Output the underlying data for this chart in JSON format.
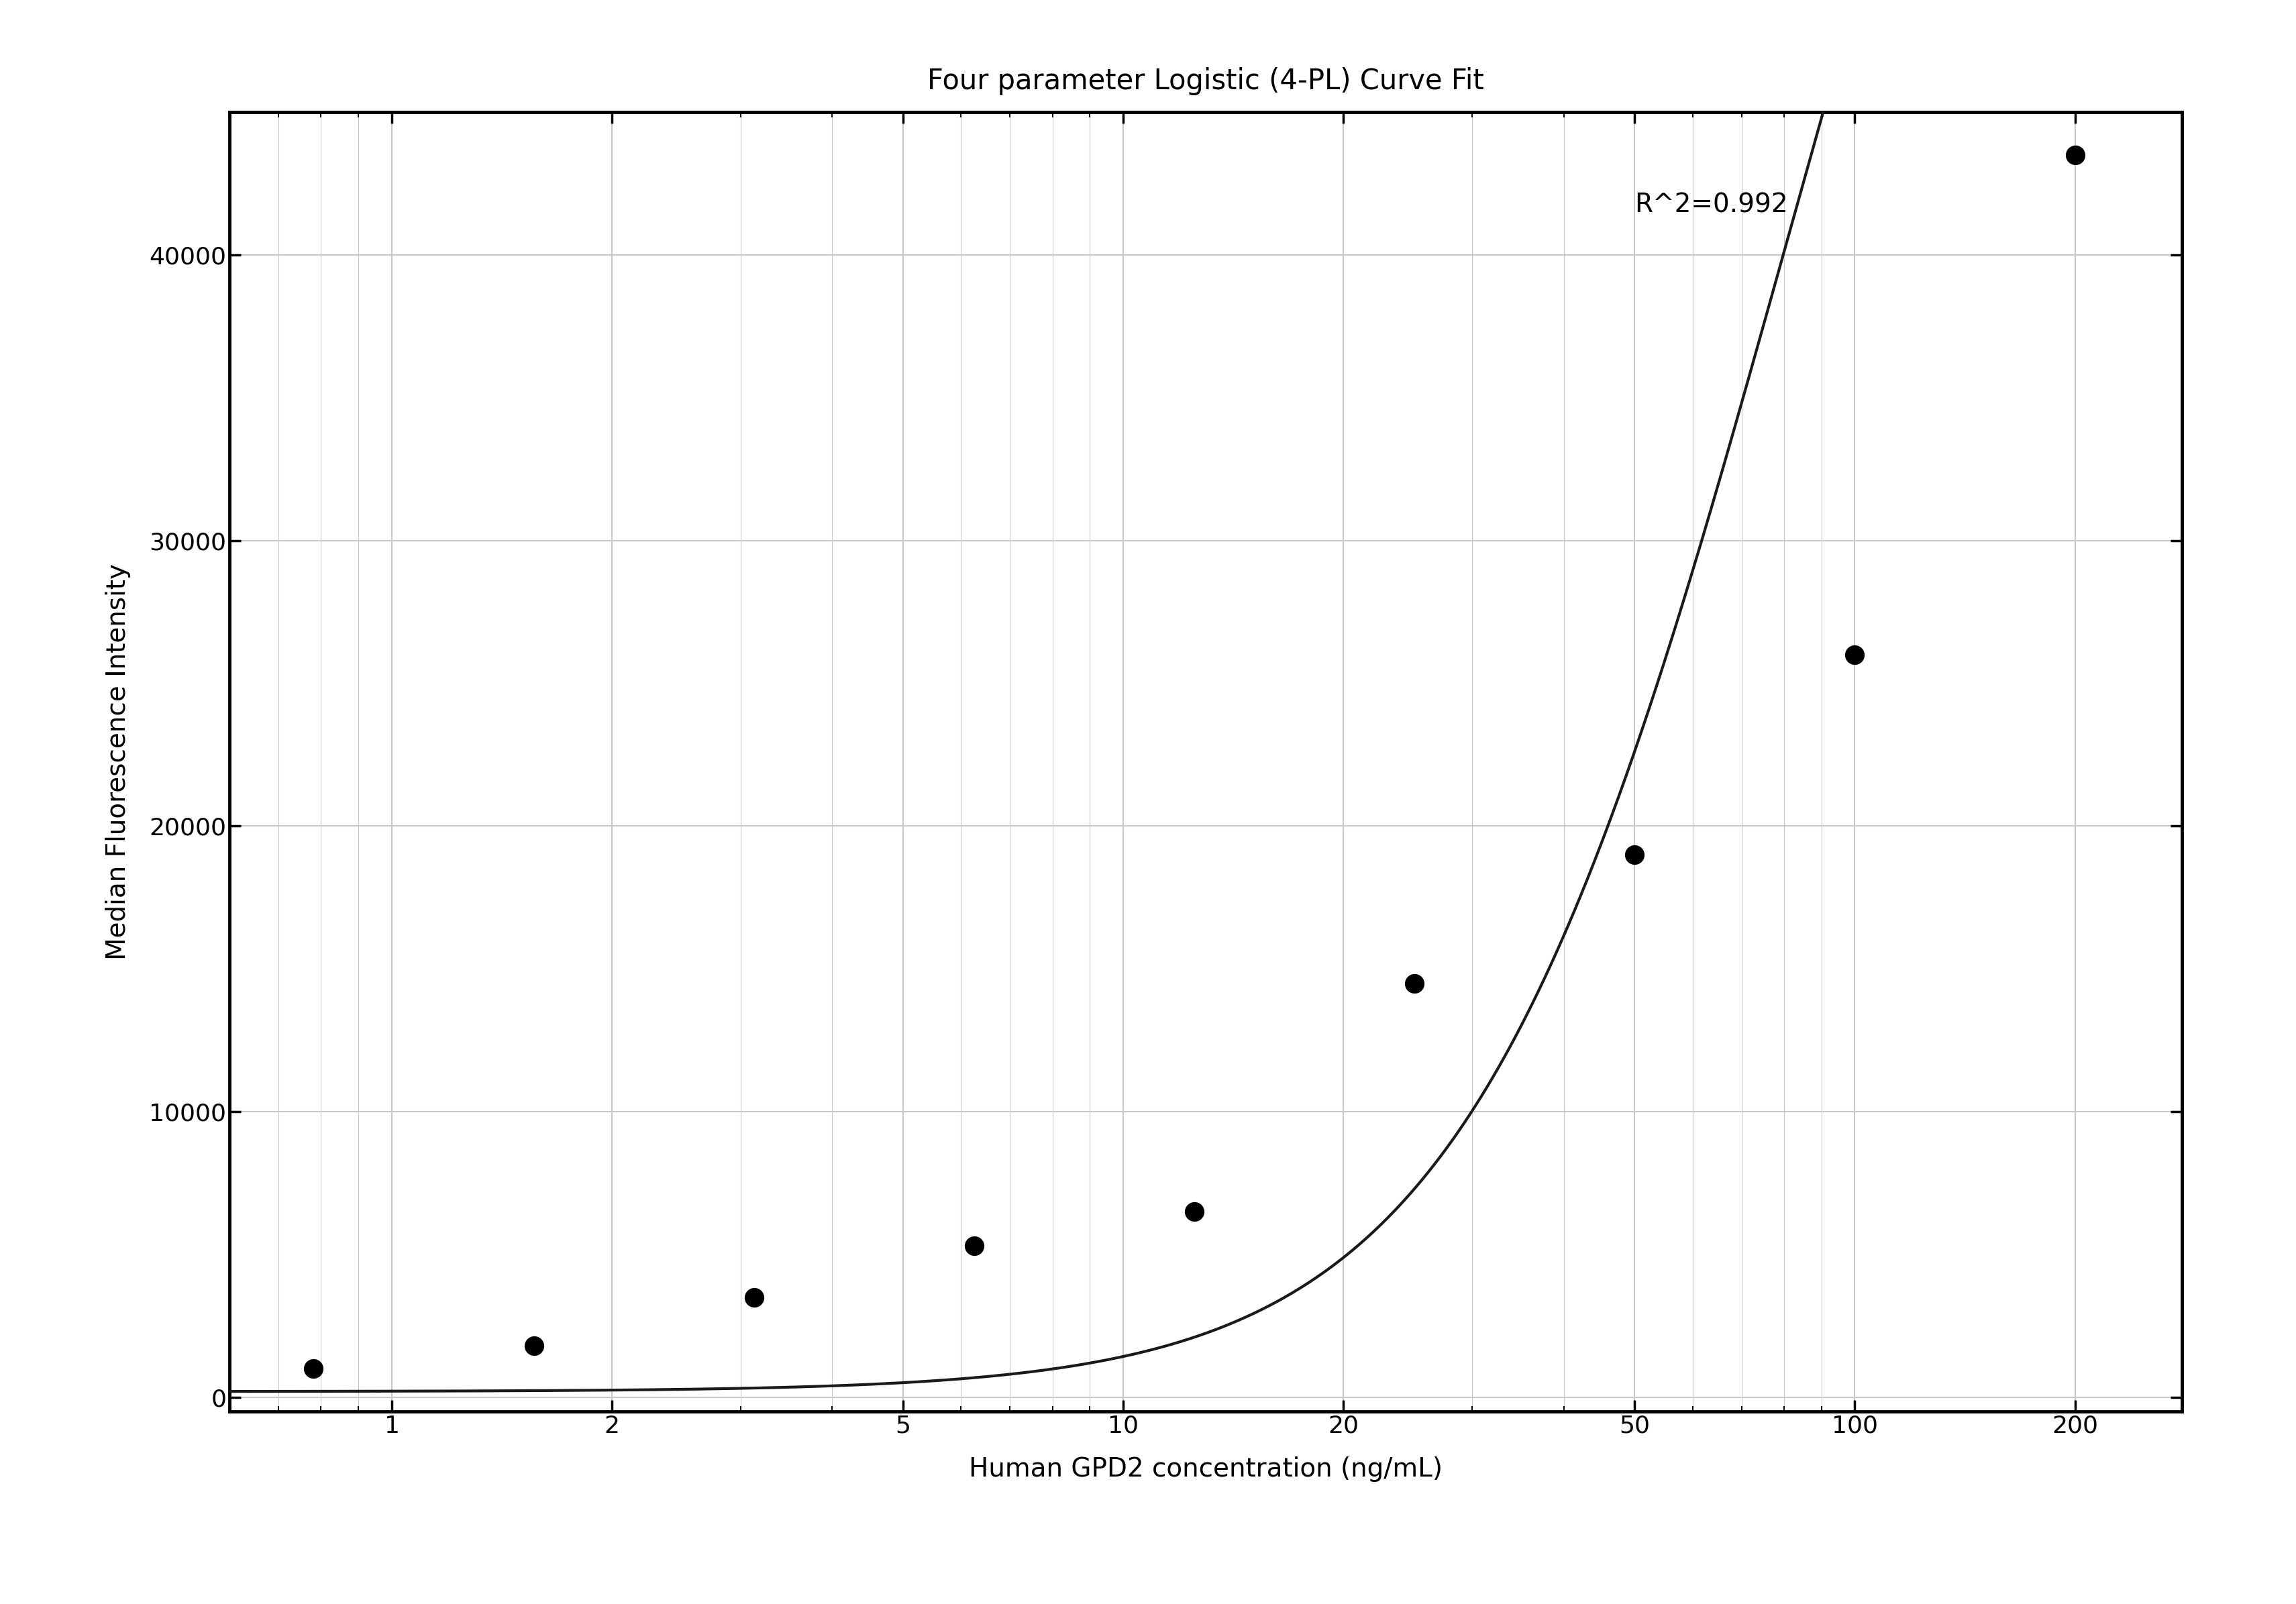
{
  "title": "Four parameter Logistic (4-PL) Curve Fit",
  "xlabel": "Human GPD2 concentration (ng/mL)",
  "ylabel": "Median Fluorescence Intensity",
  "r_squared_text": "R^2=0.992",
  "scatter_x": [
    0.781,
    1.563,
    3.125,
    6.25,
    12.5,
    25,
    50,
    100,
    200
  ],
  "scatter_y": [
    1000,
    1800,
    3500,
    5300,
    6500,
    14500,
    19000,
    26000,
    43500
  ],
  "x_ticks": [
    1,
    2,
    5,
    10,
    20,
    50,
    100,
    200
  ],
  "x_lim": [
    0.6,
    280
  ],
  "y_lim": [
    -500,
    45000
  ],
  "y_ticks": [
    0,
    10000,
    20000,
    30000,
    40000
  ],
  "scatter_color": "#000000",
  "curve_color": "#1a1a1a",
  "background_color": "#ffffff",
  "grid_color": "#c8c8c8",
  "title_fontsize": 30,
  "label_fontsize": 28,
  "tick_fontsize": 26,
  "annotation_fontsize": 28,
  "r2_x": 50,
  "r2_y": 41500
}
